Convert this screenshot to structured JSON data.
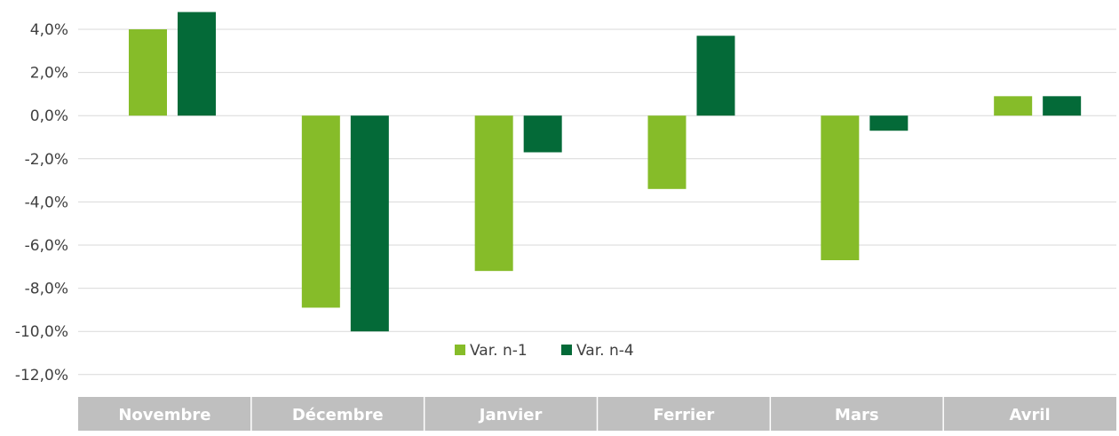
{
  "chart_data": {
    "type": "bar",
    "categories": [
      "Novembre",
      "Décembre",
      "Janvier",
      "Ferrier",
      "Mars",
      "Avril"
    ],
    "series": [
      {
        "name": "Var. n-1",
        "values": [
          4.0,
          -8.9,
          -7.2,
          -3.4,
          -6.7,
          0.9
        ]
      },
      {
        "name": "Var. n-4",
        "values": [
          4.8,
          -10.0,
          -1.7,
          3.7,
          -0.7,
          0.9
        ]
      }
    ],
    "yticks": [
      "4,0%",
      "2,0%",
      "0,0%",
      "-2,0%",
      "-4,0%",
      "-6,0%",
      "-8,0%",
      "-10,0%",
      "-12,0%"
    ],
    "ylim": [
      -12,
      4
    ],
    "grid": true,
    "legend_position": "bottom-center",
    "colors": {
      "series": [
        "#86bc29",
        "#046a38"
      ],
      "category_band": "#bfbfbf",
      "category_text": "#ffffff",
      "gridline": "#d9d9d9",
      "tick_text": "#404040"
    }
  }
}
